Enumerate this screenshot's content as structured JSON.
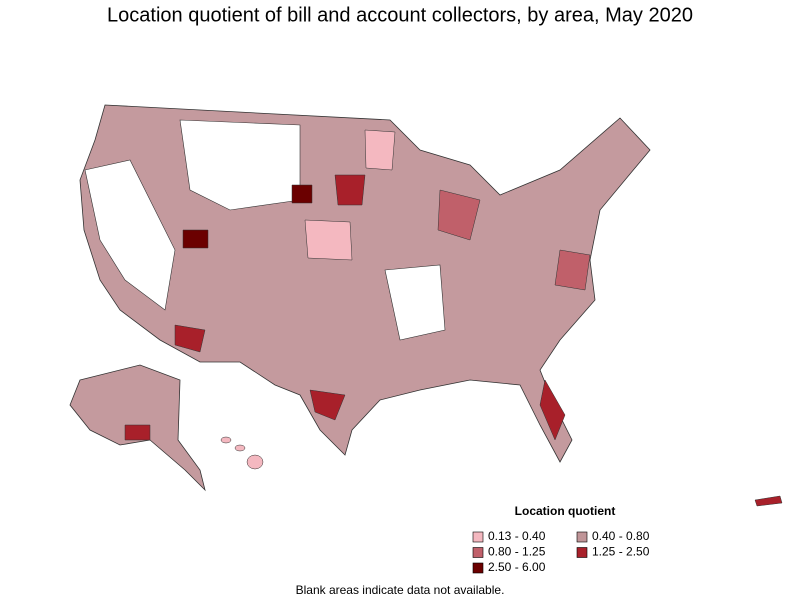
{
  "title": "Location quotient of bill and account collectors, by area, May 2020",
  "legend": {
    "title": "Location quotient",
    "items": [
      {
        "label": "0.13 - 0.40",
        "color": "#f4b8c0"
      },
      {
        "label": "0.40 - 0.80",
        "color": "#c09598"
      },
      {
        "label": "0.80 - 1.25",
        "color": "#c0606a"
      },
      {
        "label": "1.25 - 2.50",
        "color": "#a8202a"
      },
      {
        "label": "2.50 - 6.00",
        "color": "#6b0000"
      }
    ]
  },
  "note": "Blank areas indicate data not available."
}
